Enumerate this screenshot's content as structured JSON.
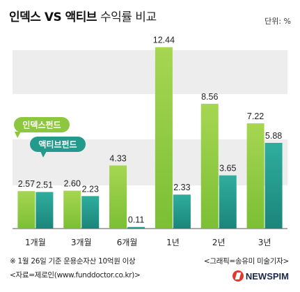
{
  "header": {
    "title_bold": "인덱스 VS 액티브",
    "title_rest": " 수익률 비교",
    "unit": "단위: %"
  },
  "chart_data": {
    "type": "bar",
    "categories": [
      "1개월",
      "3개월",
      "6개월",
      "1년",
      "2년",
      "3년"
    ],
    "series": [
      {
        "name": "인덱스펀드",
        "values": [
          2.57,
          2.6,
          4.33,
          12.44,
          8.56,
          7.22
        ],
        "color": "#8dc63f"
      },
      {
        "name": "액티브펀드",
        "values": [
          2.51,
          2.23,
          0.11,
          2.33,
          3.65,
          5.88
        ],
        "color": "#239a8c"
      }
    ],
    "value_labels": [
      [
        "2.57",
        "2.60",
        "4.33",
        "12.44",
        "8.56",
        "7.22"
      ],
      [
        "2.51",
        "2.23",
        "0.11",
        "2.33",
        "3.65",
        "5.88"
      ]
    ],
    "title": "인덱스 VS 액티브 수익률 비교",
    "ylabel": "",
    "xlabel": "",
    "ylim": [
      0,
      13
    ],
    "grid": "alternating bands",
    "legend": "inline callouts left"
  },
  "footer": {
    "note1": "※ 1월 26일 기준 운용순자산 10억원 이상",
    "note2": "<자료=제로인(www.funddoctor.co.kr)>",
    "credit": "<그래픽=송유미 미술기자>",
    "logo": "NEWSPIM"
  }
}
